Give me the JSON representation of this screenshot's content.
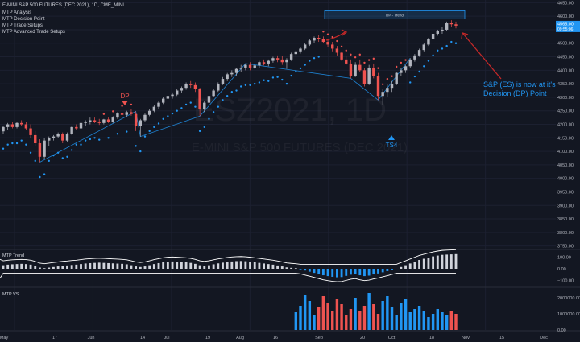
{
  "header": {
    "symbol": "E-MINI S&P 500 FUTURES (DEC 2021), 1D, CME_MINI",
    "indicators": [
      "MTP Analysis",
      "MTP Decision Point",
      "MTP Trade Setups",
      "MTP Advanced Trade Setups"
    ]
  },
  "watermark": {
    "symbol": "ESZ2021, 1D",
    "name": "E-MINI S&P 500 FUTURES (DEC 2021)"
  },
  "annotations": {
    "dp_marker": "DP",
    "ts_marker": "TS4",
    "dp_zone": "DP - Trend",
    "callout": "S&P (ES) is now at it's Decision (DP) Point"
  },
  "price_labels": {
    "last_price": "4565.00",
    "countdown": "09:55:06"
  },
  "sub_panels": {
    "oscillator_title": "MTP Trend",
    "volume_title": "MTP VS"
  },
  "colors": {
    "background": "#131722",
    "up": "#b2b5be",
    "down": "#ef5350",
    "accent_blue": "#2196f3",
    "red_annotation": "#c62828"
  },
  "chart_data": {
    "type": "candlestick",
    "x_ticks": [
      "May",
      "17",
      "Jun",
      "14",
      "Jul",
      "19",
      "Aug",
      "16",
      "Sep",
      "20",
      "Oct",
      "18",
      "Nov",
      "15",
      "Dec"
    ],
    "price_axis": {
      "ticks": [
        4650,
        4600,
        4550,
        4500,
        4450,
        4400,
        4350,
        4300,
        4250,
        4200,
        4150,
        4100,
        4050,
        4000,
        3950,
        3900,
        3850,
        3800,
        3750
      ],
      "range": [
        3740,
        4660
      ]
    },
    "candles": [
      [
        4174,
        4195,
        4165,
        4190
      ],
      [
        4190,
        4205,
        4180,
        4200
      ],
      [
        4200,
        4208,
        4185,
        4190
      ],
      [
        4190,
        4210,
        4185,
        4205
      ],
      [
        4205,
        4215,
        4195,
        4200
      ],
      [
        4200,
        4210,
        4180,
        4185
      ],
      [
        4185,
        4200,
        4150,
        4160
      ],
      [
        4160,
        4175,
        4120,
        4130
      ],
      [
        4130,
        4145,
        4060,
        4080
      ],
      [
        4080,
        4150,
        4070,
        4140
      ],
      [
        4140,
        4155,
        4120,
        4150
      ],
      [
        4150,
        4160,
        4140,
        4155
      ],
      [
        4155,
        4170,
        4150,
        4165
      ],
      [
        4165,
        4170,
        4130,
        4140
      ],
      [
        4140,
        4170,
        4135,
        4165
      ],
      [
        4165,
        4195,
        4160,
        4190
      ],
      [
        4190,
        4200,
        4180,
        4185
      ],
      [
        4185,
        4210,
        4180,
        4205
      ],
      [
        4205,
        4215,
        4195,
        4208
      ],
      [
        4208,
        4225,
        4200,
        4215
      ],
      [
        4215,
        4225,
        4205,
        4210
      ],
      [
        4210,
        4220,
        4198,
        4205
      ],
      [
        4205,
        4220,
        4200,
        4218
      ],
      [
        4218,
        4225,
        4205,
        4210
      ],
      [
        4210,
        4230,
        4205,
        4225
      ],
      [
        4225,
        4245,
        4220,
        4240
      ],
      [
        4240,
        4250,
        4230,
        4235
      ],
      [
        4235,
        4250,
        4228,
        4245
      ],
      [
        4245,
        4255,
        4232,
        4238
      ],
      [
        4238,
        4248,
        4175,
        4195
      ],
      [
        4195,
        4220,
        4155,
        4215
      ],
      [
        4215,
        4240,
        4210,
        4235
      ],
      [
        4235,
        4255,
        4230,
        4250
      ],
      [
        4250,
        4270,
        4245,
        4265
      ],
      [
        4265,
        4285,
        4258,
        4280
      ],
      [
        4280,
        4300,
        4275,
        4295
      ],
      [
        4295,
        4310,
        4285,
        4305
      ],
      [
        4305,
        4318,
        4295,
        4310
      ],
      [
        4310,
        4330,
        4305,
        4325
      ],
      [
        4325,
        4340,
        4315,
        4335
      ],
      [
        4335,
        4355,
        4328,
        4350
      ],
      [
        4350,
        4360,
        4335,
        4345
      ],
      [
        4345,
        4355,
        4320,
        4330
      ],
      [
        4330,
        4335,
        4230,
        4255
      ],
      [
        4255,
        4285,
        4245,
        4280
      ],
      [
        4280,
        4310,
        4275,
        4305
      ],
      [
        4305,
        4330,
        4300,
        4325
      ],
      [
        4325,
        4355,
        4320,
        4350
      ],
      [
        4350,
        4375,
        4345,
        4368
      ],
      [
        4368,
        4390,
        4360,
        4385
      ],
      [
        4385,
        4400,
        4375,
        4390
      ],
      [
        4390,
        4410,
        4380,
        4405
      ],
      [
        4405,
        4420,
        4395,
        4410
      ],
      [
        4410,
        4425,
        4400,
        4420
      ],
      [
        4420,
        4430,
        4400,
        4410
      ],
      [
        4410,
        4425,
        4405,
        4418
      ],
      [
        4418,
        4435,
        4410,
        4430
      ],
      [
        4430,
        4440,
        4418,
        4425
      ],
      [
        4425,
        4440,
        4415,
        4435
      ],
      [
        4435,
        4450,
        4428,
        4445
      ],
      [
        4445,
        4455,
        4430,
        4440
      ],
      [
        4440,
        4452,
        4420,
        4430
      ],
      [
        4430,
        4445,
        4405,
        4440
      ],
      [
        4440,
        4465,
        4435,
        4460
      ],
      [
        4460,
        4475,
        4450,
        4470
      ],
      [
        4470,
        4485,
        4462,
        4480
      ],
      [
        4480,
        4500,
        4475,
        4495
      ],
      [
        4495,
        4515,
        4490,
        4510
      ],
      [
        4510,
        4525,
        4500,
        4520
      ],
      [
        4520,
        4530,
        4505,
        4515
      ],
      [
        4515,
        4525,
        4500,
        4505
      ],
      [
        4505,
        4515,
        4485,
        4495
      ],
      [
        4495,
        4505,
        4470,
        4480
      ],
      [
        4480,
        4490,
        4455,
        4465
      ],
      [
        4465,
        4470,
        4435,
        4440
      ],
      [
        4440,
        4455,
        4420,
        4425
      ],
      [
        4425,
        4440,
        4370,
        4380
      ],
      [
        4380,
        4430,
        4375,
        4420
      ],
      [
        4420,
        4440,
        4395,
        4400
      ],
      [
        4400,
        4410,
        4340,
        4350
      ],
      [
        4350,
        4420,
        4345,
        4410
      ],
      [
        4410,
        4425,
        4370,
        4380
      ],
      [
        4380,
        4390,
        4290,
        4305
      ],
      [
        4305,
        4330,
        4270,
        4320
      ],
      [
        4320,
        4350,
        4300,
        4335
      ],
      [
        4335,
        4360,
        4320,
        4350
      ],
      [
        4350,
        4395,
        4345,
        4390
      ],
      [
        4390,
        4410,
        4380,
        4400
      ],
      [
        4400,
        4420,
        4390,
        4415
      ],
      [
        4415,
        4445,
        4410,
        4440
      ],
      [
        4440,
        4460,
        4432,
        4455
      ],
      [
        4455,
        4480,
        4450,
        4475
      ],
      [
        4475,
        4500,
        4470,
        4495
      ],
      [
        4495,
        4520,
        4490,
        4515
      ],
      [
        4515,
        4540,
        4510,
        4535
      ],
      [
        4535,
        4550,
        4528,
        4545
      ],
      [
        4545,
        4560,
        4535,
        4550
      ],
      [
        4550,
        4580,
        4545,
        4575
      ],
      [
        4575,
        4585,
        4560,
        4570
      ],
      [
        4570,
        4580,
        4555,
        4565
      ]
    ],
    "oscillator_axis": {
      "ticks": [
        "100.00",
        "0.00",
        "−100.00"
      ],
      "range": [
        -150,
        150
      ]
    },
    "oscillator_values": [
      30,
      35,
      38,
      40,
      42,
      40,
      35,
      25,
      10,
      5,
      10,
      15,
      20,
      25,
      28,
      32,
      35,
      40,
      45,
      48,
      50,
      52,
      50,
      48,
      46,
      44,
      42,
      38,
      30,
      20,
      15,
      20,
      30,
      40,
      48,
      55,
      60,
      62,
      60,
      58,
      55,
      50,
      42,
      30,
      25,
      30,
      38,
      46,
      52,
      58,
      62,
      65,
      66,
      64,
      60,
      55,
      50,
      45,
      40,
      35,
      28,
      20,
      12,
      8,
      5,
      -5,
      -15,
      -25,
      -35,
      -45,
      -55,
      -62,
      -68,
      -72,
      -70,
      -60,
      -50,
      -45,
      -55,
      -62,
      -58,
      -48,
      -40,
      -30,
      -20,
      -10,
      0,
      15,
      30,
      45,
      60,
      75,
      85,
      95,
      105,
      112,
      118,
      120,
      122,
      124
    ],
    "volume_axis": {
      "ticks": [
        "2000000.00",
        "1000000.00",
        "0.00"
      ],
      "range": [
        0,
        2600000
      ]
    },
    "volume_values": [
      0,
      0,
      0,
      0,
      0,
      0,
      0,
      0,
      0,
      0,
      0,
      0,
      0,
      0,
      0,
      0,
      0,
      0,
      0,
      0,
      0,
      0,
      0,
      0,
      0,
      0,
      0,
      0,
      0,
      0,
      0,
      0,
      0,
      0,
      0,
      0,
      0,
      0,
      0,
      0,
      0,
      0,
      0,
      0,
      0,
      0,
      0,
      0,
      0,
      0,
      0,
      0,
      0,
      0,
      0,
      0,
      0,
      0,
      0,
      0,
      0,
      0,
      0,
      0,
      1100000,
      1500000,
      2200000,
      1800000,
      900000,
      1400000,
      2100000,
      1700000,
      1200000,
      1900000,
      1600000,
      900000,
      1300000,
      2000000,
      1200000,
      1500000,
      2300000,
      1600000,
      1000000,
      1800000,
      2100000,
      1400000,
      900000,
      1700000,
      1900000,
      1100000,
      1300000,
      1500000,
      1200000,
      800000,
      1000000,
      1300000,
      1100000,
      900000,
      1200000,
      1000000
    ]
  }
}
